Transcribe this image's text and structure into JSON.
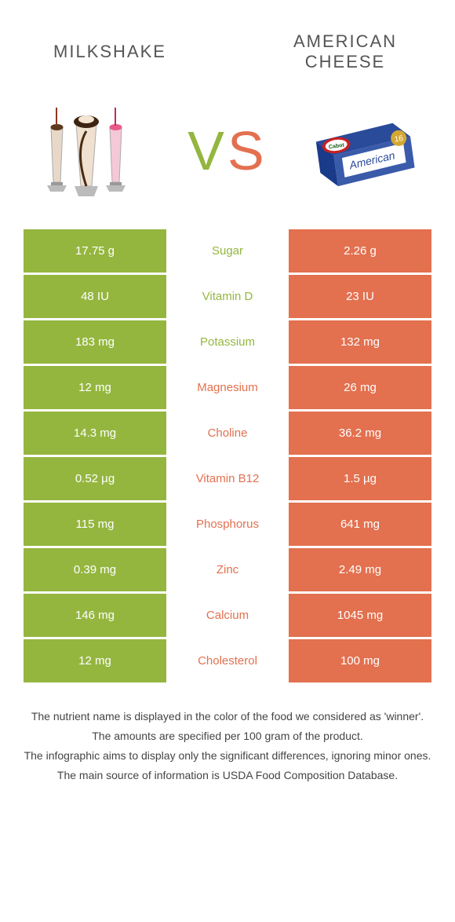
{
  "colors": {
    "green": "#94b63f",
    "orange": "#e3704f",
    "text": "#444444"
  },
  "header": {
    "left": "Milkshake",
    "right": "American cheese",
    "vs_v": "V",
    "vs_s": "S"
  },
  "rows": [
    {
      "left": "17.75 g",
      "mid": "Sugar",
      "right": "2.26 g",
      "winner": "green"
    },
    {
      "left": "48 IU",
      "mid": "Vitamin D",
      "right": "23 IU",
      "winner": "green"
    },
    {
      "left": "183 mg",
      "mid": "Potassium",
      "right": "132 mg",
      "winner": "green"
    },
    {
      "left": "12 mg",
      "mid": "Magnesium",
      "right": "26 mg",
      "winner": "orange"
    },
    {
      "left": "14.3 mg",
      "mid": "Choline",
      "right": "36.2 mg",
      "winner": "orange"
    },
    {
      "left": "0.52 µg",
      "mid": "Vitamin B12",
      "right": "1.5 µg",
      "winner": "orange"
    },
    {
      "left": "115 mg",
      "mid": "Phosphorus",
      "right": "641 mg",
      "winner": "orange"
    },
    {
      "left": "0.39 mg",
      "mid": "Zinc",
      "right": "2.49 mg",
      "winner": "orange"
    },
    {
      "left": "146 mg",
      "mid": "Calcium",
      "right": "1045 mg",
      "winner": "orange"
    },
    {
      "left": "12 mg",
      "mid": "Cholesterol",
      "right": "100 mg",
      "winner": "orange"
    }
  ],
  "footer": {
    "line1": "The nutrient name is displayed in the color of the food we considered as 'winner'.",
    "line2": "The amounts are specified per 100 gram of the product.",
    "line3": "The infographic aims to display only the significant differences, ignoring minor ones.",
    "line4": "The main source of information is USDA Food Composition Database."
  }
}
